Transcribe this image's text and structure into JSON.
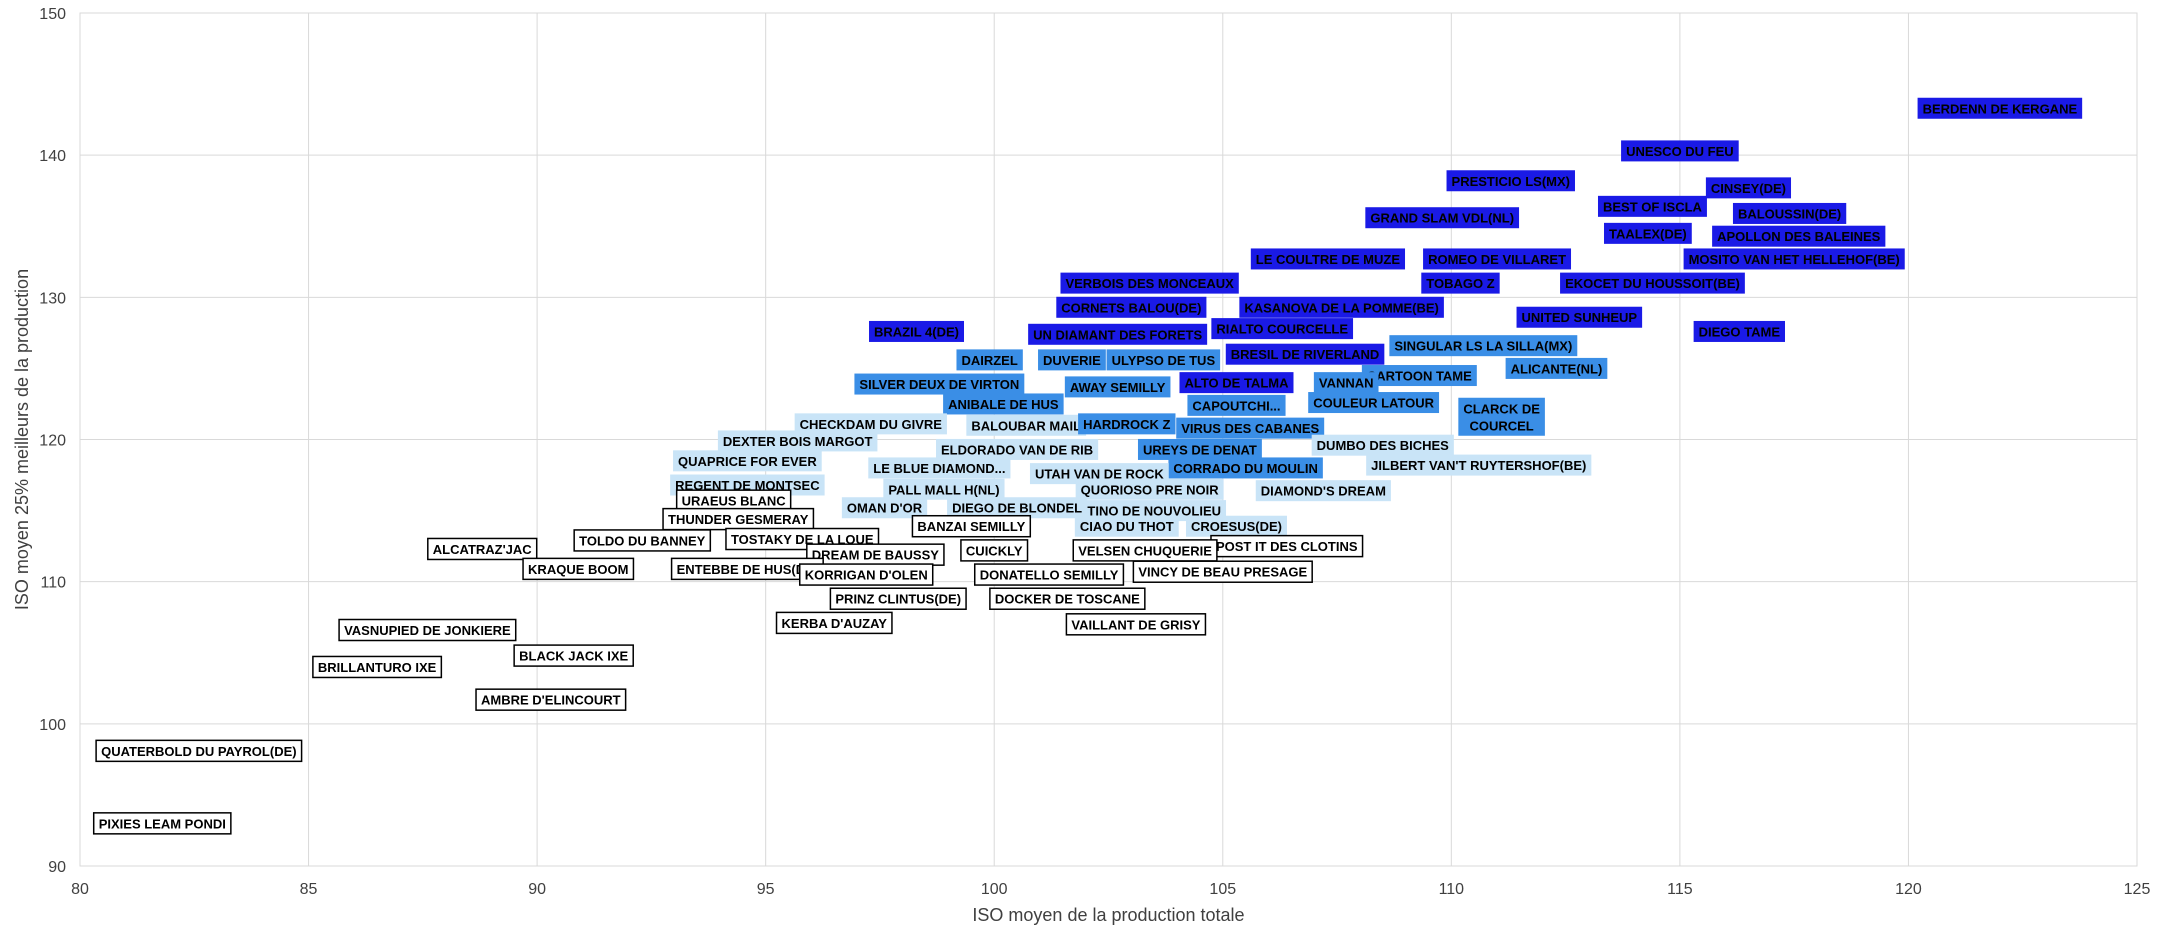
{
  "chart_data": {
    "type": "scatter",
    "title": "",
    "xlabel": "ISO moyen de la production totale",
    "ylabel": "ISO moyen 25% meilleurs de la production",
    "xlim": [
      80,
      125
    ],
    "ylim": [
      90,
      150
    ],
    "x_ticks": [
      80,
      85,
      90,
      95,
      100,
      105,
      110,
      115,
      120,
      125
    ],
    "y_ticks": [
      90,
      100,
      110,
      120,
      130,
      140,
      150
    ],
    "grid": true,
    "legend": "none",
    "label_styles": {
      "dark": {
        "fill": "#1a1ae6",
        "text": "#000000",
        "stroke": "none"
      },
      "mid": {
        "fill": "#3a8ee6",
        "text": "#000000",
        "stroke": "none"
      },
      "light": {
        "fill": "#c9e4f7",
        "text": "#000000",
        "stroke": "none"
      },
      "outline": {
        "fill": "#ffffff",
        "text": "#000000",
        "stroke": "#000000"
      }
    },
    "points": [
      {
        "label": "BERDENN DE KERGANE",
        "x": 122,
        "y": 143.3,
        "style": "dark"
      },
      {
        "label": "UNESCO DU FEU",
        "x": 115,
        "y": 140.3,
        "style": "dark"
      },
      {
        "label": "PRESTICIO LS(MX)",
        "x": 111.3,
        "y": 138.2,
        "style": "dark"
      },
      {
        "label": "CINSEY(DE)",
        "x": 116.5,
        "y": 137.7,
        "style": "dark"
      },
      {
        "label": "BEST OF ISCLA",
        "x": 114.4,
        "y": 136.4,
        "style": "dark"
      },
      {
        "label": "BALOUSSIN(DE)",
        "x": 117.4,
        "y": 135.9,
        "style": "dark"
      },
      {
        "label": "GRAND SLAM VDL(NL)",
        "x": 109.8,
        "y": 135.6,
        "style": "dark"
      },
      {
        "label": "TAALEX(DE)",
        "x": 114.3,
        "y": 134.5,
        "style": "dark"
      },
      {
        "label": "APOLLON DES BALEINES",
        "x": 117.6,
        "y": 134.3,
        "style": "dark"
      },
      {
        "label": "LE COULTRE DE MUZE",
        "x": 107.3,
        "y": 132.7,
        "style": "dark"
      },
      {
        "label": "ROMEO DE VILLARET",
        "x": 111,
        "y": 132.7,
        "style": "dark"
      },
      {
        "label": "MOSITO VAN HET HELLEHOF(BE)",
        "x": 117.5,
        "y": 132.7,
        "style": "dark"
      },
      {
        "label": "VERBOIS DES MONCEAUX",
        "x": 103.4,
        "y": 131,
        "style": "dark"
      },
      {
        "label": "TOBAGO Z",
        "x": 110.2,
        "y": 131,
        "style": "dark"
      },
      {
        "label": "EKOCET DU HOUSSOIT(BE)",
        "x": 114.4,
        "y": 131,
        "style": "dark"
      },
      {
        "label": "CORNETS BALOU(DE)",
        "x": 103,
        "y": 129.3,
        "style": "dark"
      },
      {
        "label": "KASANOVA DE LA POMME(BE)",
        "x": 107.6,
        "y": 129.3,
        "style": "dark"
      },
      {
        "label": "UNITED SUNHEUP",
        "x": 112.8,
        "y": 128.6,
        "style": "dark"
      },
      {
        "label": "BRAZIL 4(DE)",
        "x": 98.3,
        "y": 127.6,
        "style": "dark"
      },
      {
        "label": "UN DIAMANT DES FORETS",
        "x": 102.7,
        "y": 127.4,
        "style": "dark"
      },
      {
        "label": "RIALTO COURCELLE",
        "x": 106.3,
        "y": 127.8,
        "style": "dark"
      },
      {
        "label": "DIEGO TAME",
        "x": 116.3,
        "y": 127.6,
        "style": "dark"
      },
      {
        "label": "SINGULAR LS LA SILLA(MX)",
        "x": 110.7,
        "y": 126.6,
        "style": "mid"
      },
      {
        "label": "BRESIL DE RIVERLAND",
        "x": 106.8,
        "y": 126,
        "style": "dark"
      },
      {
        "label": "DAIRZEL",
        "x": 99.9,
        "y": 125.6,
        "style": "mid"
      },
      {
        "label": "DUVERIE",
        "x": 101.7,
        "y": 125.6,
        "style": "mid"
      },
      {
        "label": "ULYPSO DE TUS",
        "x": 103.7,
        "y": 125.6,
        "style": "mid"
      },
      {
        "label": "ALICANTE(NL)",
        "x": 112.3,
        "y": 125,
        "style": "mid"
      },
      {
        "label": "CARTOON TAME",
        "x": 109.3,
        "y": 124.5,
        "style": "mid"
      },
      {
        "label": "SILVER DEUX DE VIRTON",
        "x": 98.8,
        "y": 123.9,
        "style": "mid"
      },
      {
        "label": "AWAY SEMILLY",
        "x": 102.7,
        "y": 123.7,
        "style": "mid"
      },
      {
        "label": "ALTO DE TALMA",
        "x": 105.3,
        "y": 124,
        "style": "dark"
      },
      {
        "label": "VANNAN",
        "x": 107.7,
        "y": 124,
        "style": "mid"
      },
      {
        "label": "ANIBALE DE HUS",
        "x": 100.2,
        "y": 122.5,
        "style": "mid"
      },
      {
        "label": "CAPOUTCHI...",
        "x": 105.3,
        "y": 122.4,
        "style": "mid"
      },
      {
        "label": "COULEUR LATOUR",
        "x": 108.3,
        "y": 122.6,
        "style": "mid"
      },
      {
        "label": "CLARCK DE COURCEL",
        "x": 111.1,
        "y": 121.6,
        "style": "mid"
      },
      {
        "label": "CHECKDAM DU GIVRE",
        "x": 97.3,
        "y": 121.1,
        "style": "light"
      },
      {
        "label": "BALOUBAR MAIL",
        "x": 100.7,
        "y": 121,
        "style": "light"
      },
      {
        "label": "HARDROCK Z",
        "x": 102.9,
        "y": 121.1,
        "style": "mid"
      },
      {
        "label": "VIRUS DES CABANES",
        "x": 105.6,
        "y": 120.8,
        "style": "mid"
      },
      {
        "label": "DEXTER BOIS MARGOT",
        "x": 95.7,
        "y": 119.9,
        "style": "light"
      },
      {
        "label": "DUMBO DES BICHES",
        "x": 108.5,
        "y": 119.6,
        "style": "light"
      },
      {
        "label": "ELDORADO VAN DE RIB",
        "x": 100.5,
        "y": 119.3,
        "style": "light"
      },
      {
        "label": "UREYS DE DENAT",
        "x": 104.5,
        "y": 119.3,
        "style": "mid"
      },
      {
        "label": "QUAPRICE FOR EVER",
        "x": 94.6,
        "y": 118.5,
        "style": "light"
      },
      {
        "label": "JILBERT VAN'T RUYTERSHOF(BE)",
        "x": 110.6,
        "y": 118.2,
        "style": "light"
      },
      {
        "label": "LE BLUE DIAMOND...",
        "x": 98.8,
        "y": 118,
        "style": "light"
      },
      {
        "label": "CORRADO DU MOULIN",
        "x": 105.5,
        "y": 118,
        "style": "mid"
      },
      {
        "label": "UTAH VAN DE ROCK",
        "x": 102.3,
        "y": 117.6,
        "style": "light"
      },
      {
        "label": "REGENT DE MONTSEC",
        "x": 94.6,
        "y": 116.8,
        "style": "light"
      },
      {
        "label": "PALL MALL H(NL)",
        "x": 98.9,
        "y": 116.5,
        "style": "light"
      },
      {
        "label": "QUORIOSO PRE NOIR",
        "x": 103.4,
        "y": 116.5,
        "style": "light"
      },
      {
        "label": "DIAMOND'S DREAM",
        "x": 107.2,
        "y": 116.4,
        "style": "light"
      },
      {
        "label": "URAEUS BLANC",
        "x": 94.3,
        "y": 115.7,
        "style": "outline"
      },
      {
        "label": "OMAN D'OR",
        "x": 97.6,
        "y": 115.2,
        "style": "light"
      },
      {
        "label": "DIEGO DE BLONDEL",
        "x": 100.5,
        "y": 115.2,
        "style": "light"
      },
      {
        "label": "TINO DE NOUVOLIEU",
        "x": 103.5,
        "y": 115,
        "style": "light"
      },
      {
        "label": "THUNDER GESMERAY",
        "x": 94.4,
        "y": 114.4,
        "style": "outline"
      },
      {
        "label": "BANZAI SEMILLY",
        "x": 99.5,
        "y": 113.9,
        "style": "outline"
      },
      {
        "label": "CIAO DU THOT",
        "x": 102.9,
        "y": 113.9,
        "style": "light"
      },
      {
        "label": "CROESUS(DE)",
        "x": 105.3,
        "y": 113.9,
        "style": "light"
      },
      {
        "label": "TOLDO DU BANNEY",
        "x": 92.3,
        "y": 112.9,
        "style": "outline"
      },
      {
        "label": "TOSTAKY DE LA LOUE",
        "x": 95.8,
        "y": 113,
        "style": "outline"
      },
      {
        "label": "ALCATRAZ'JAC",
        "x": 88.8,
        "y": 112.3,
        "style": "outline"
      },
      {
        "label": "POST IT DES CLOTINS",
        "x": 106.4,
        "y": 112.5,
        "style": "outline"
      },
      {
        "label": "DREAM DE BAUSSY",
        "x": 97.4,
        "y": 111.9,
        "style": "outline"
      },
      {
        "label": "CUICKLY",
        "x": 100,
        "y": 112.2,
        "style": "outline"
      },
      {
        "label": "VELSEN CHUQUERIE",
        "x": 103.3,
        "y": 112.2,
        "style": "outline"
      },
      {
        "label": "KRAQUE BOOM",
        "x": 90.9,
        "y": 110.9,
        "style": "outline"
      },
      {
        "label": "ENTEBBE DE HUS(DE)",
        "x": 94.6,
        "y": 110.9,
        "style": "outline"
      },
      {
        "label": "KORRIGAN D'OLEN",
        "x": 97.2,
        "y": 110.5,
        "style": "outline"
      },
      {
        "label": "DONATELLO SEMILLY",
        "x": 101.2,
        "y": 110.5,
        "style": "outline"
      },
      {
        "label": "VINCY DE BEAU PRESAGE",
        "x": 105,
        "y": 110.7,
        "style": "outline"
      },
      {
        "label": "PRINZ CLINTUS(DE)",
        "x": 97.9,
        "y": 108.8,
        "style": "outline"
      },
      {
        "label": "DOCKER DE TOSCANE",
        "x": 101.6,
        "y": 108.8,
        "style": "outline"
      },
      {
        "label": "KERBA D'AUZAY",
        "x": 96.5,
        "y": 107.1,
        "style": "outline"
      },
      {
        "label": "VAILLANT DE GRISY",
        "x": 103.1,
        "y": 107,
        "style": "outline"
      },
      {
        "label": "VASNUPIED DE JONKIERE",
        "x": 87.6,
        "y": 106.6,
        "style": "outline"
      },
      {
        "label": "BLACK JACK IXE",
        "x": 90.8,
        "y": 104.8,
        "style": "outline"
      },
      {
        "label": "BRILLANTURO IXE",
        "x": 86.5,
        "y": 104,
        "style": "outline"
      },
      {
        "label": "AMBRE D'ELINCOURT",
        "x": 90.3,
        "y": 101.7,
        "style": "outline"
      },
      {
        "label": "QUATERBOLD DU PAYROL(DE)",
        "x": 82.6,
        "y": 98.1,
        "style": "outline"
      },
      {
        "label": "PIXIES LEAM PONDI",
        "x": 81.8,
        "y": 93,
        "style": "outline"
      }
    ]
  }
}
